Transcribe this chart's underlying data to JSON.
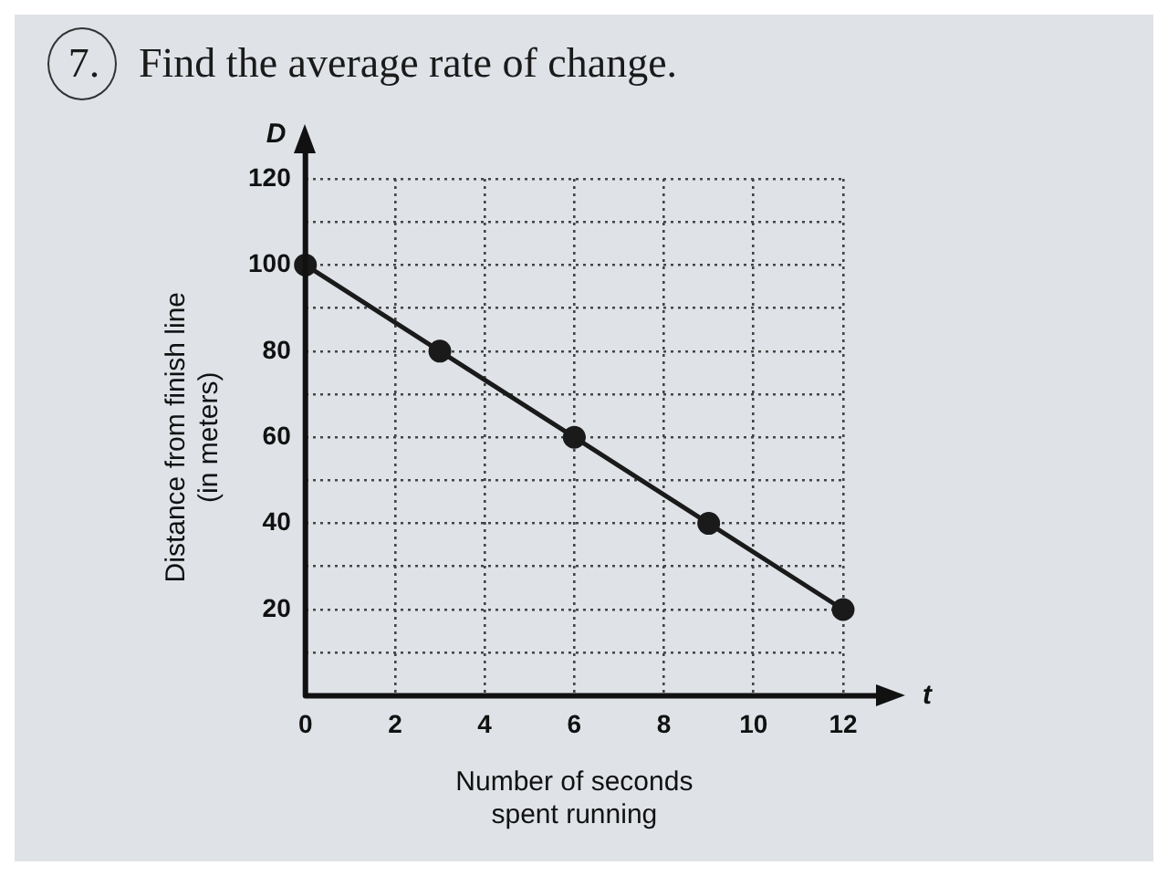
{
  "chart_data": {
    "type": "line",
    "title": "Find the average rate of change.",
    "annotations": [
      "7.",
      "D",
      "t"
    ],
    "xlabel": "Number of seconds\nspent running",
    "ylabel": "Distance from finish line\n(in meters)",
    "x": [
      0,
      3,
      6,
      9,
      12
    ],
    "series": [
      {
        "color": "#1a1a1a",
        "values": [
          100,
          80,
          60,
          40,
          20
        ]
      }
    ],
    "xlim": [
      0,
      12
    ],
    "ylim": [
      0,
      120
    ],
    "xticks": [
      0,
      2,
      4,
      6,
      8,
      10,
      12
    ],
    "yticks": [
      {
        "value": 10,
        "label": null
      },
      20,
      {
        "value": 30,
        "label": null
      },
      40,
      {
        "value": 50,
        "label": null
      },
      60,
      {
        "value": 70,
        "label": null
      },
      80,
      {
        "value": 90,
        "label": null
      },
      100,
      {
        "value": 110,
        "label": null
      },
      120
    ],
    "grid": true,
    "marker": "circle",
    "line_style": "solid",
    "legend": false
  }
}
